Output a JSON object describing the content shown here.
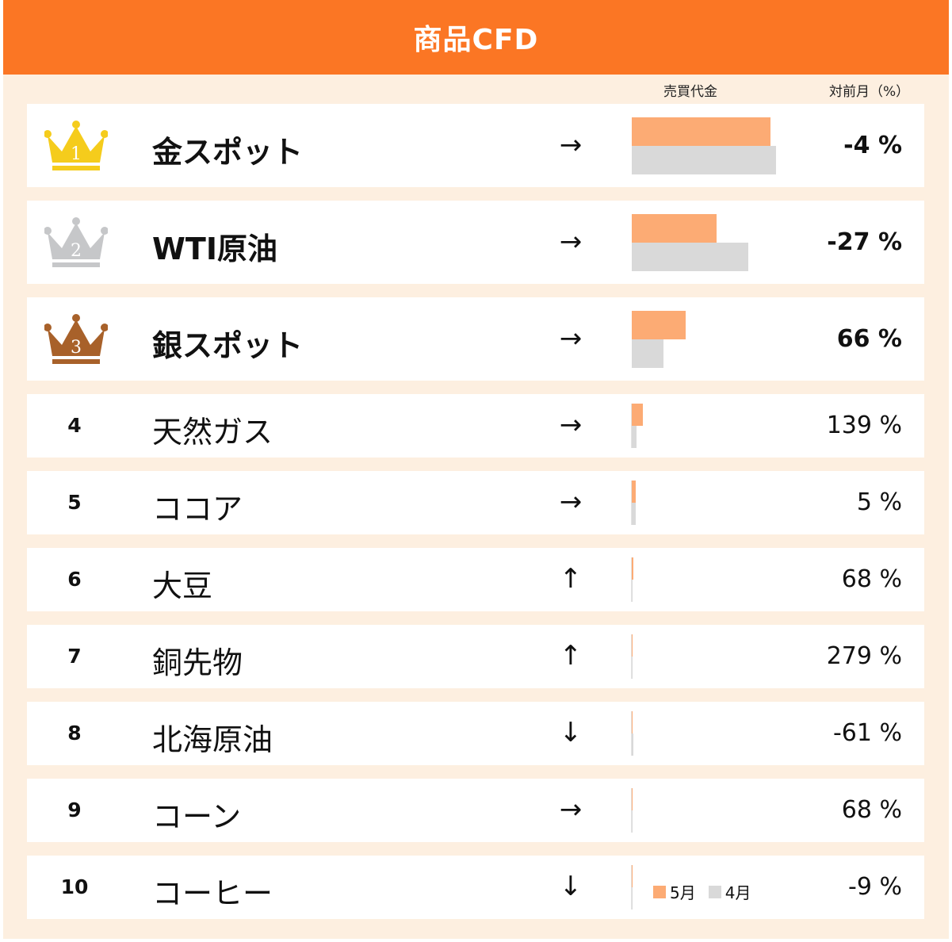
{
  "title": "商品CFD",
  "col_headers": {
    "amount": "売買代金",
    "mom": "対前月（%）"
  },
  "legend": {
    "may": "5月",
    "apr": "4月"
  },
  "colors": {
    "header": "#fb7624",
    "background": "#fdefe0",
    "may": "#fcab74",
    "apr": "#d9d9d9",
    "gold": "#f5cc1c",
    "silver": "#c6c7c9",
    "bronze": "#a8612a"
  },
  "chart_data": {
    "type": "bar",
    "orientation": "horizontal",
    "categories": [
      "金スポット",
      "WTI原油",
      "銀スポット",
      "天然ガス",
      "ココア",
      "大豆",
      "銅先物",
      "北海原油",
      "コーン",
      "コーヒー"
    ],
    "series": [
      {
        "name": "5月",
        "values": [
          100,
          61,
          39,
          8,
          3,
          1.3,
          0.6,
          0.4,
          0.3,
          0.2
        ]
      },
      {
        "name": "4月",
        "values": [
          104,
          84,
          23,
          3.4,
          2.9,
          0.8,
          0.2,
          1.0,
          0.2,
          0.2
        ]
      }
    ],
    "legend_position": "bottom-right"
  },
  "rows": [
    {
      "rank": "1",
      "name": "金スポット",
      "arrow": "→",
      "pct": "-4 %",
      "medal": "gold",
      "top": true
    },
    {
      "rank": "2",
      "name": "WTI原油",
      "arrow": "→",
      "pct": "-27 %",
      "medal": "silver",
      "top": true
    },
    {
      "rank": "3",
      "name": "銀スポット",
      "arrow": "→",
      "pct": "66 %",
      "medal": "bronze",
      "top": true
    },
    {
      "rank": "4",
      "name": "天然ガス",
      "arrow": "→",
      "pct": "139 %",
      "top": false
    },
    {
      "rank": "5",
      "name": "ココア",
      "arrow": "→",
      "pct": "5 %",
      "top": false
    },
    {
      "rank": "6",
      "name": "大豆",
      "arrow": "↑",
      "pct": "68 %",
      "top": false
    },
    {
      "rank": "7",
      "name": "銅先物",
      "arrow": "↑",
      "pct": "279 %",
      "top": false
    },
    {
      "rank": "8",
      "name": "北海原油",
      "arrow": "↓",
      "pct": "-61 %",
      "top": false
    },
    {
      "rank": "9",
      "name": "コーン",
      "arrow": "→",
      "pct": "68 %",
      "top": false
    },
    {
      "rank": "10",
      "name": "コーヒー",
      "arrow": "↓",
      "pct": "-9 %",
      "top": false
    }
  ]
}
